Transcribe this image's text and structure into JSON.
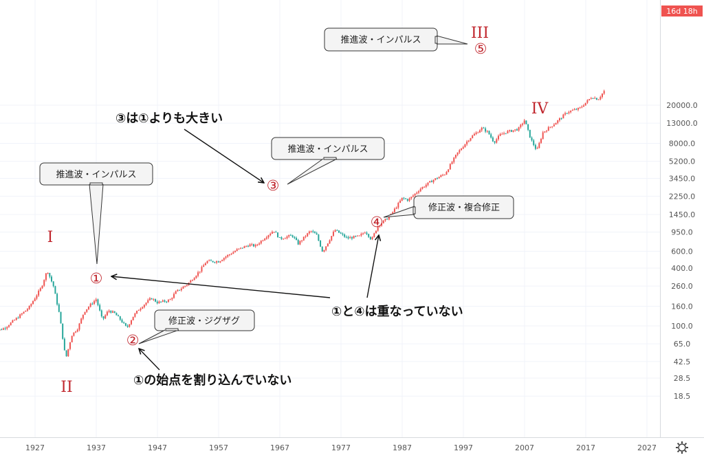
{
  "chart_data": {
    "type": "line",
    "yscale": "log",
    "x_ticks": [
      "1927",
      "1937",
      "1947",
      "1957",
      "1967",
      "1977",
      "1987",
      "1997",
      "2007",
      "2017",
      "2027"
    ],
    "y_ticks": [
      "20000.0",
      "13000.0",
      "8000.0",
      "5200.0",
      "3450.0",
      "2250.0",
      "1450.0",
      "950.0",
      "600.0",
      "400.0",
      "260.0",
      "160.0",
      "100.0",
      "65.0",
      "42.5",
      "28.5",
      "18.5"
    ],
    "timer": "16d 18h",
    "x": [
      1920,
      1922,
      1924,
      1926,
      1928,
      1929,
      1930,
      1931,
      1932,
      1933,
      1934,
      1935,
      1936,
      1937,
      1938,
      1939,
      1940,
      1941,
      1942,
      1943,
      1944,
      1946,
      1947,
      1949,
      1950,
      1952,
      1954,
      1955,
      1957,
      1958,
      1960,
      1962,
      1963,
      1965,
      1966,
      1967,
      1969,
      1970,
      1972,
      1973,
      1974,
      1976,
      1978,
      1980,
      1981,
      1982,
      1983,
      1985,
      1987,
      1988,
      1990,
      1992,
      1994,
      1996,
      1998,
      2000,
      2001,
      2002,
      2003,
      2004,
      2006,
      2007,
      2008,
      2009,
      2010,
      2012,
      2014,
      2016,
      2018,
      2019,
      2020
    ],
    "y": [
      85,
      95,
      120,
      155,
      250,
      380,
      260,
      130,
      45,
      80,
      95,
      140,
      165,
      190,
      115,
      145,
      135,
      115,
      95,
      125,
      150,
      195,
      175,
      185,
      225,
      275,
      380,
      470,
      470,
      520,
      620,
      700,
      680,
      880,
      990,
      810,
      880,
      720,
      980,
      890,
      590,
      1000,
      820,
      860,
      970,
      790,
      1100,
      1390,
      2150,
      2050,
      2700,
      3300,
      3850,
      6300,
      9000,
      11500,
      10500,
      8200,
      9800,
      10500,
      11300,
      14000,
      8900,
      6700,
      10400,
      13000,
      17000,
      18500,
      24500,
      23000,
      28000
    ],
    "annotations": {
      "wave_labels": [
        "I",
        "II",
        "III",
        "IV"
      ],
      "circled": [
        "①",
        "②",
        "③",
        "④",
        "⑤"
      ],
      "callouts": [
        "推進波・インパルス",
        "修正波・ジグザグ",
        "推進波・インパルス",
        "修正波・複合修正",
        "推進波・インパルス"
      ],
      "notes": [
        "③は①よりも大きい",
        "①と④は重なっていない",
        "①の始点を割り込んでいない"
      ]
    }
  }
}
